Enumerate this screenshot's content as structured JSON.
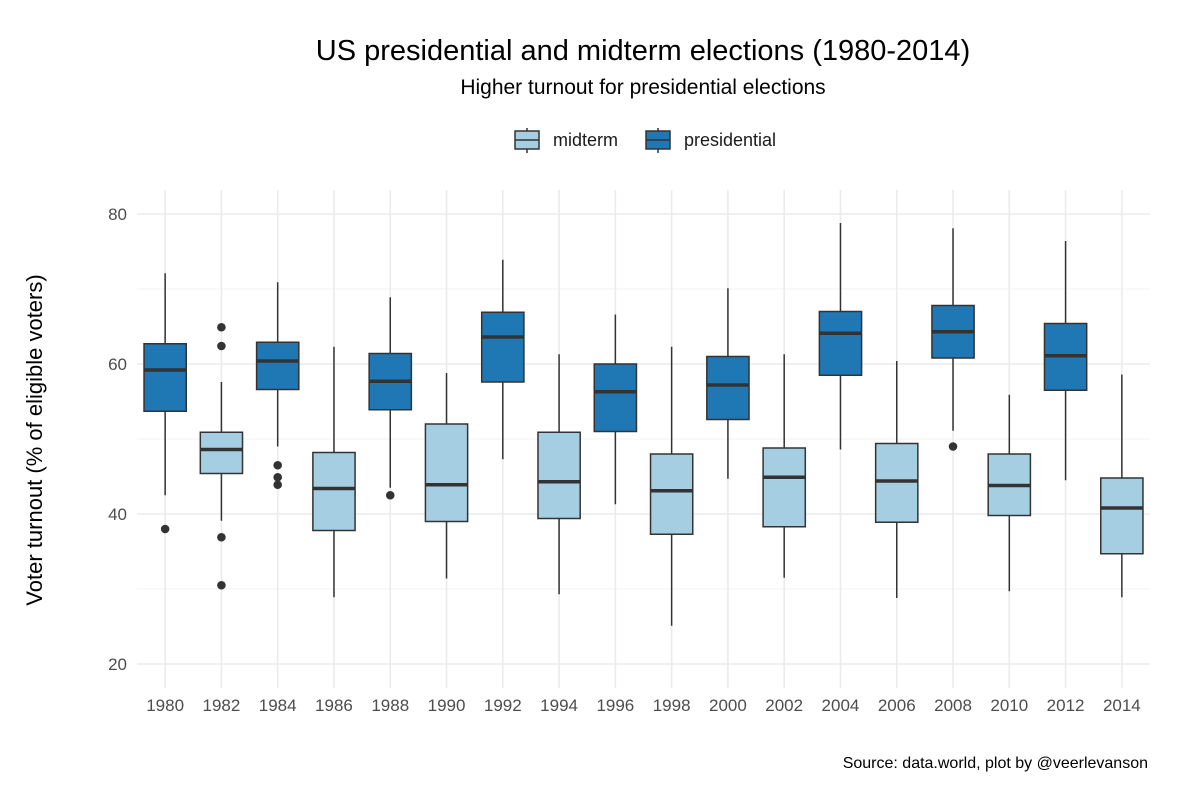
{
  "chart_data": {
    "type": "boxplot",
    "title": "US presidential and midterm elections (1980-2014)",
    "subtitle": "Higher turnout for presidential elections",
    "ylabel": "Voter turnout (% of eligible voters)",
    "xlabel": "",
    "caption": "Source: data.world, plot by @veerlevanson",
    "ylim": [
      17,
      83
    ],
    "yticks": [
      20,
      40,
      60,
      80
    ],
    "grid": true,
    "legend_position": "top",
    "legend": [
      {
        "name": "midterm",
        "color": "#a6cee3"
      },
      {
        "name": "presidential",
        "color": "#1f78b4"
      }
    ],
    "categories": [
      "1980",
      "1982",
      "1984",
      "1986",
      "1988",
      "1990",
      "1992",
      "1994",
      "1996",
      "1998",
      "2000",
      "2002",
      "2004",
      "2006",
      "2008",
      "2010",
      "2012",
      "2014"
    ],
    "boxes": [
      {
        "x": "1980",
        "type": "presidential",
        "min": 42.5,
        "q1": 53.7,
        "median": 59.2,
        "q3": 62.7,
        "max": 72.1,
        "outliers": [
          38.0
        ]
      },
      {
        "x": "1982",
        "type": "midterm",
        "min": 39.1,
        "q1": 45.4,
        "median": 48.6,
        "q3": 50.9,
        "max": 57.6,
        "outliers": [
          64.9,
          62.4,
          36.9,
          30.5
        ]
      },
      {
        "x": "1984",
        "type": "presidential",
        "min": 49.0,
        "q1": 56.6,
        "median": 60.4,
        "q3": 62.9,
        "max": 70.9,
        "outliers": [
          46.5,
          44.9,
          43.9
        ]
      },
      {
        "x": "1986",
        "type": "midterm",
        "min": 28.9,
        "q1": 37.8,
        "median": 43.4,
        "q3": 48.2,
        "max": 62.3,
        "outliers": []
      },
      {
        "x": "1988",
        "type": "presidential",
        "min": 43.5,
        "q1": 53.9,
        "median": 57.7,
        "q3": 61.4,
        "max": 68.9,
        "outliers": [
          42.5
        ]
      },
      {
        "x": "1990",
        "type": "midterm",
        "min": 31.4,
        "q1": 39.0,
        "median": 43.9,
        "q3": 52.0,
        "max": 58.8,
        "outliers": []
      },
      {
        "x": "1992",
        "type": "presidential",
        "min": 47.3,
        "q1": 57.6,
        "median": 63.6,
        "q3": 66.9,
        "max": 73.9,
        "outliers": []
      },
      {
        "x": "1994",
        "type": "midterm",
        "min": 29.3,
        "q1": 39.4,
        "median": 44.3,
        "q3": 50.9,
        "max": 61.3,
        "outliers": []
      },
      {
        "x": "1996",
        "type": "presidential",
        "min": 41.3,
        "q1": 51.0,
        "median": 56.3,
        "q3": 60.0,
        "max": 66.6,
        "outliers": []
      },
      {
        "x": "1998",
        "type": "midterm",
        "min": 25.1,
        "q1": 37.3,
        "median": 43.1,
        "q3": 48.0,
        "max": 62.3,
        "outliers": []
      },
      {
        "x": "2000",
        "type": "presidential",
        "min": 44.7,
        "q1": 52.6,
        "median": 57.2,
        "q3": 61.0,
        "max": 70.1,
        "outliers": []
      },
      {
        "x": "2002",
        "type": "midterm",
        "min": 31.5,
        "q1": 38.3,
        "median": 44.9,
        "q3": 48.8,
        "max": 61.3,
        "outliers": []
      },
      {
        "x": "2004",
        "type": "presidential",
        "min": 48.6,
        "q1": 58.5,
        "median": 64.1,
        "q3": 67.0,
        "max": 78.8,
        "outliers": []
      },
      {
        "x": "2006",
        "type": "midterm",
        "min": 28.8,
        "q1": 38.9,
        "median": 44.4,
        "q3": 49.4,
        "max": 60.4,
        "outliers": []
      },
      {
        "x": "2008",
        "type": "presidential",
        "min": 51.1,
        "q1": 60.8,
        "median": 64.3,
        "q3": 67.8,
        "max": 78.1,
        "outliers": [
          49.0
        ]
      },
      {
        "x": "2010",
        "type": "midterm",
        "min": 29.7,
        "q1": 39.8,
        "median": 43.8,
        "q3": 48.0,
        "max": 55.9,
        "outliers": []
      },
      {
        "x": "2012",
        "type": "presidential",
        "min": 44.5,
        "q1": 56.5,
        "median": 61.1,
        "q3": 65.4,
        "max": 76.4,
        "outliers": []
      },
      {
        "x": "2014",
        "type": "midterm",
        "min": 28.9,
        "q1": 34.7,
        "median": 40.8,
        "q3": 44.8,
        "max": 58.6,
        "outliers": []
      }
    ]
  }
}
